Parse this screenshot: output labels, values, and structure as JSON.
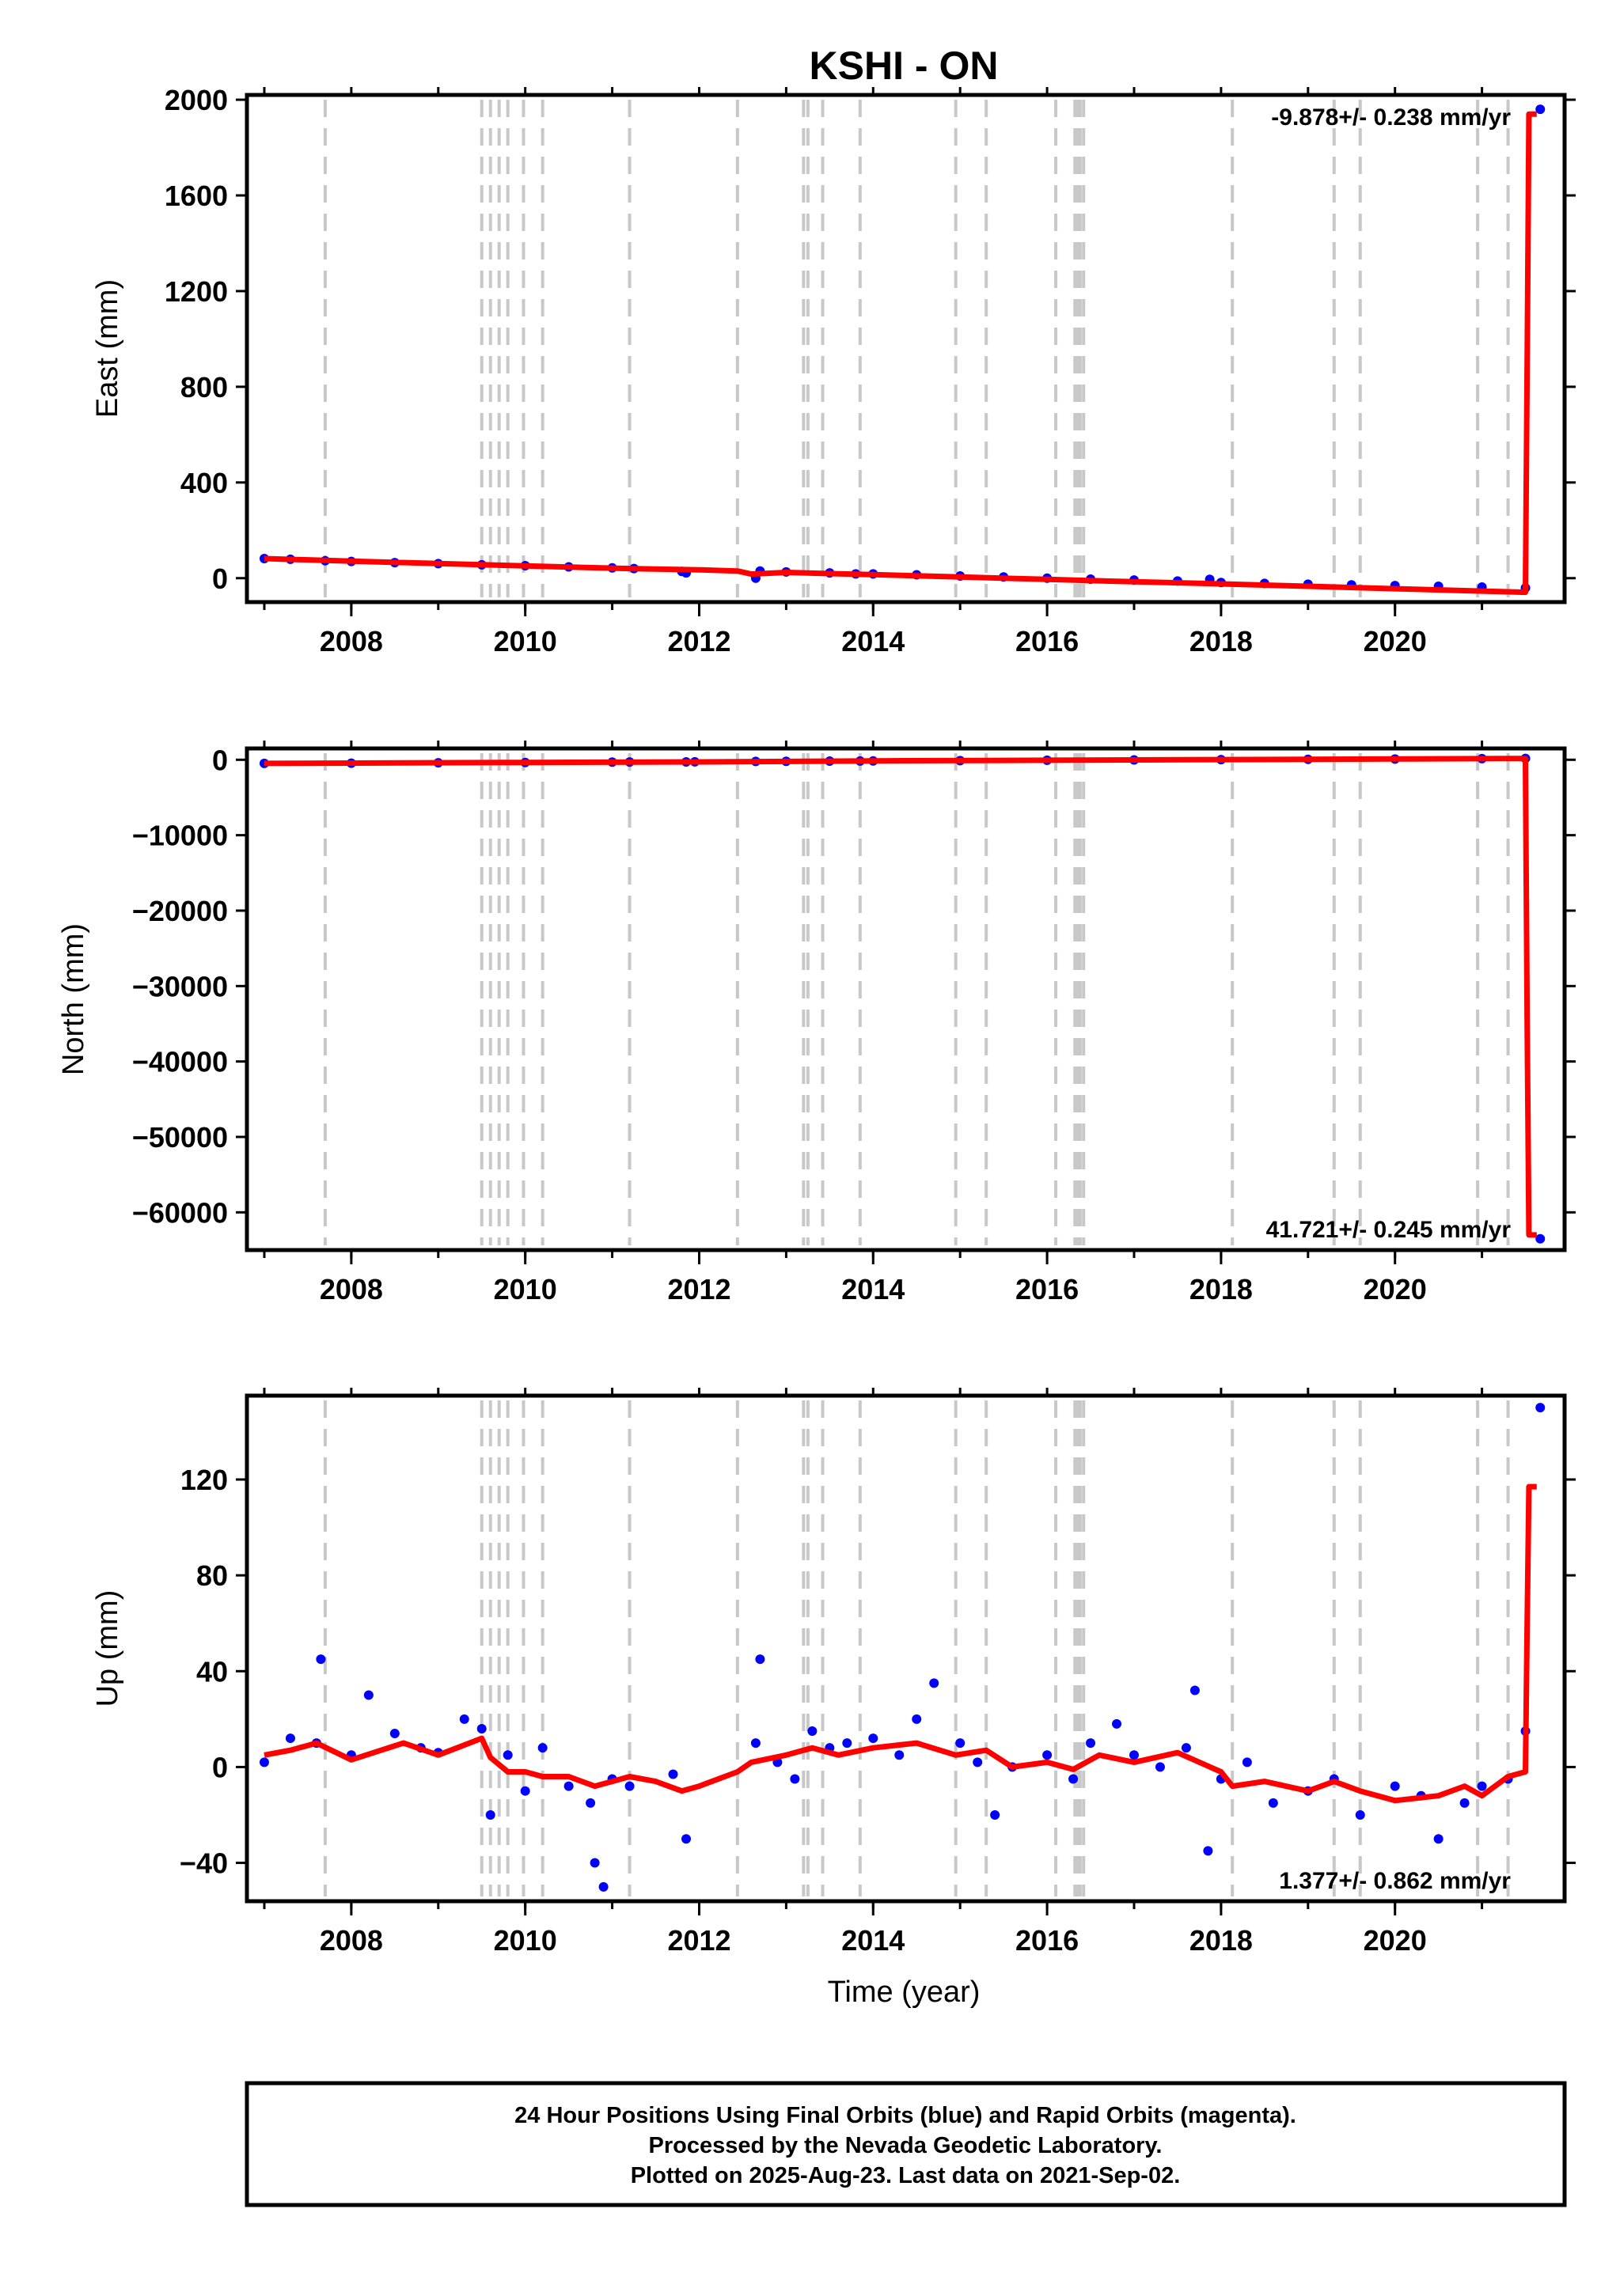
{
  "figure": {
    "title": "KSHI - ON",
    "xlabel": "Time (year)",
    "footer": [
      "24 Hour Positions Using Final Orbits (blue) and Rapid Orbits (magenta).",
      "Processed by the Nevada Geodetic Laboratory.",
      "Plotted on 2025-Aug-23. Last data on 2021-Sep-02."
    ],
    "colors": {
      "observations": "#0000ff",
      "model": "#ff0000",
      "events": "#c8c8c8",
      "frame": "#000000"
    }
  },
  "chart_data": [
    {
      "type": "scatter",
      "panel": "east",
      "ylabel": "East (mm)",
      "rate_label": "-9.878+/- 0.238 mm/yr",
      "rate_position": "top-right",
      "xlim": [
        2006.8,
        2021.95
      ],
      "ylim": [
        -100,
        2020
      ],
      "yticks": [
        0,
        400,
        800,
        1200,
        1600,
        2000
      ],
      "xticks": [
        2008,
        2010,
        2012,
        2014,
        2016,
        2018,
        2020
      ],
      "event_lines": [
        2007.7,
        2009.5,
        2009.6,
        2009.7,
        2009.8,
        2009.98,
        2010.2,
        2011.2,
        2012.44,
        2013.2,
        2013.25,
        2013.42,
        2013.85,
        2014.95,
        2015.3,
        2016.1,
        2016.32,
        2016.35,
        2016.38,
        2016.42,
        2018.13,
        2019.3,
        2019.6,
        2020.95,
        2021.3
      ],
      "series": [
        {
          "role": "observations",
          "x": [
            2007.0,
            2007.3,
            2007.7,
            2008.0,
            2008.5,
            2009.0,
            2009.5,
            2010.0,
            2010.5,
            2011.0,
            2011.25,
            2011.8,
            2011.85,
            2012.65,
            2012.7,
            2013.0,
            2013.5,
            2013.8,
            2014.0,
            2014.5,
            2015.0,
            2015.5,
            2016.0,
            2016.5,
            2017.0,
            2017.5,
            2017.87,
            2018.0,
            2018.5,
            2019.0,
            2019.5,
            2020.0,
            2020.5,
            2021.0,
            2021.5,
            2021.67
          ],
          "y": [
            82,
            79,
            73,
            70,
            65,
            61,
            56,
            52,
            47,
            43,
            40,
            28,
            22,
            0,
            30,
            26,
            22,
            18,
            18,
            14,
            9,
            5,
            0,
            -4,
            -8,
            -12,
            -5,
            -18,
            -22,
            -25,
            -28,
            -31,
            -34,
            -37,
            -41,
            1960
          ]
        },
        {
          "role": "model",
          "x": [
            2007.0,
            2008.0,
            2009.0,
            2010.0,
            2011.0,
            2011.25,
            2012.0,
            2012.44,
            2012.6,
            2013.0,
            2013.5,
            2014.0,
            2015.0,
            2016.0,
            2017.0,
            2018.0,
            2019.0,
            2020.0,
            2021.0,
            2021.5,
            2021.52,
            2021.54,
            2021.63
          ],
          "y": [
            82,
            71,
            61,
            51,
            42,
            40,
            35,
            30,
            17,
            24,
            19,
            15,
            5,
            -5,
            -15,
            -24,
            -34,
            -44,
            -54,
            -59,
            900,
            1940,
            1940
          ]
        }
      ]
    },
    {
      "type": "scatter",
      "panel": "north",
      "ylabel": "North (mm)",
      "rate_label": "41.721+/- 0.245 mm/yr",
      "rate_position": "bottom-right",
      "xlim": [
        2006.8,
        2021.95
      ],
      "ylim": [
        -65000,
        1500
      ],
      "yticks": [
        -60000,
        -50000,
        -40000,
        -30000,
        -20000,
        -10000,
        0
      ],
      "xticks": [
        2008,
        2010,
        2012,
        2014,
        2016,
        2018,
        2020
      ],
      "event_lines": [
        2007.7,
        2009.5,
        2009.6,
        2009.7,
        2009.8,
        2009.98,
        2010.2,
        2011.2,
        2012.44,
        2013.2,
        2013.25,
        2013.42,
        2013.85,
        2014.95,
        2015.3,
        2016.1,
        2016.32,
        2016.35,
        2016.38,
        2016.42,
        2018.13,
        2019.3,
        2019.6,
        2020.95,
        2021.3
      ],
      "series": [
        {
          "role": "observations",
          "x": [
            2007.0,
            2008.0,
            2009.0,
            2010.0,
            2011.0,
            2011.2,
            2011.85,
            2011.95,
            2012.65,
            2013.0,
            2013.5,
            2013.85,
            2014.0,
            2015.0,
            2016.0,
            2017.0,
            2018.0,
            2019.0,
            2020.0,
            2021.0,
            2021.5,
            2021.67
          ],
          "y": [
            -480,
            -450,
            -400,
            -360,
            -310,
            -300,
            -280,
            -270,
            -220,
            -200,
            -180,
            -160,
            -150,
            -110,
            -60,
            -20,
            20,
            60,
            100,
            150,
            170,
            -63500
          ]
        },
        {
          "role": "model",
          "x": [
            2007.0,
            2010.0,
            2012.0,
            2014.0,
            2016.0,
            2018.0,
            2020.0,
            2021.5,
            2021.52,
            2021.54,
            2021.63
          ],
          "y": [
            -480,
            -360,
            -280,
            -150,
            -60,
            20,
            100,
            170,
            -35000,
            -63000,
            -63000
          ]
        }
      ]
    },
    {
      "type": "scatter",
      "panel": "up",
      "ylabel": "Up (mm)",
      "rate_label": "1.377+/- 0.862 mm/yr",
      "rate_position": "bottom-right",
      "xlim": [
        2006.8,
        2021.95
      ],
      "ylim": [
        -56,
        155
      ],
      "yticks": [
        -40,
        0,
        40,
        80,
        120
      ],
      "xticks": [
        2008,
        2010,
        2012,
        2014,
        2016,
        2018,
        2020
      ],
      "event_lines": [
        2007.7,
        2009.5,
        2009.6,
        2009.7,
        2009.8,
        2009.98,
        2010.2,
        2011.2,
        2012.44,
        2013.2,
        2013.25,
        2013.42,
        2013.85,
        2014.95,
        2015.3,
        2016.1,
        2016.32,
        2016.35,
        2016.38,
        2016.42,
        2018.13,
        2019.3,
        2019.6,
        2020.95,
        2021.3
      ],
      "series": [
        {
          "role": "observations",
          "x": [
            2007.0,
            2007.3,
            2007.6,
            2007.65,
            2008.0,
            2008.2,
            2008.5,
            2008.8,
            2009.0,
            2009.3,
            2009.5,
            2009.6,
            2009.8,
            2010.0,
            2010.2,
            2010.5,
            2010.75,
            2010.8,
            2010.9,
            2011.0,
            2011.2,
            2011.7,
            2011.85,
            2012.65,
            2012.7,
            2012.9,
            2013.1,
            2013.3,
            2013.5,
            2013.7,
            2014.0,
            2014.3,
            2014.5,
            2014.7,
            2015.0,
            2015.2,
            2015.4,
            2015.6,
            2016.0,
            2016.3,
            2016.5,
            2016.8,
            2017.0,
            2017.3,
            2017.6,
            2017.7,
            2017.85,
            2018.0,
            2018.3,
            2018.6,
            2019.0,
            2019.3,
            2019.6,
            2020.0,
            2020.3,
            2020.5,
            2020.8,
            2021.0,
            2021.3,
            2021.5,
            2021.67
          ],
          "y": [
            2,
            12,
            10,
            45,
            5,
            30,
            14,
            8,
            6,
            20,
            16,
            -20,
            5,
            -10,
            8,
            -8,
            -15,
            -40,
            -50,
            -5,
            -8,
            -3,
            -30,
            10,
            45,
            2,
            -5,
            15,
            8,
            10,
            12,
            5,
            20,
            35,
            10,
            2,
            -20,
            0,
            5,
            -5,
            10,
            18,
            5,
            0,
            8,
            32,
            -35,
            -5,
            2,
            -15,
            -10,
            -5,
            -20,
            -8,
            -12,
            -30,
            -15,
            -8,
            -5,
            15,
            150
          ]
        },
        {
          "role": "model",
          "x": [
            2007.0,
            2007.3,
            2007.6,
            2008.0,
            2008.6,
            2009.0,
            2009.5,
            2009.6,
            2009.8,
            2010.0,
            2010.2,
            2010.5,
            2010.8,
            2011.0,
            2011.2,
            2011.5,
            2011.8,
            2012.0,
            2012.44,
            2012.6,
            2013.0,
            2013.3,
            2013.6,
            2014.0,
            2014.5,
            2014.95,
            2015.3,
            2015.6,
            2016.0,
            2016.3,
            2016.6,
            2017.0,
            2017.5,
            2018.0,
            2018.13,
            2018.5,
            2019.0,
            2019.3,
            2019.6,
            2020.0,
            2020.5,
            2020.8,
            2021.0,
            2021.3,
            2021.5,
            2021.52,
            2021.54,
            2021.63
          ],
          "y": [
            5,
            7,
            10,
            3,
            10,
            5,
            12,
            4,
            -2,
            -2,
            -4,
            -4,
            -8,
            -6,
            -4,
            -6,
            -10,
            -8,
            -2,
            2,
            5,
            8,
            5,
            8,
            10,
            5,
            7,
            0,
            2,
            -1,
            5,
            2,
            6,
            -2,
            -8,
            -6,
            -10,
            -6,
            -10,
            -14,
            -12,
            -8,
            -12,
            -4,
            -2,
            60,
            117,
            117
          ]
        }
      ]
    }
  ]
}
